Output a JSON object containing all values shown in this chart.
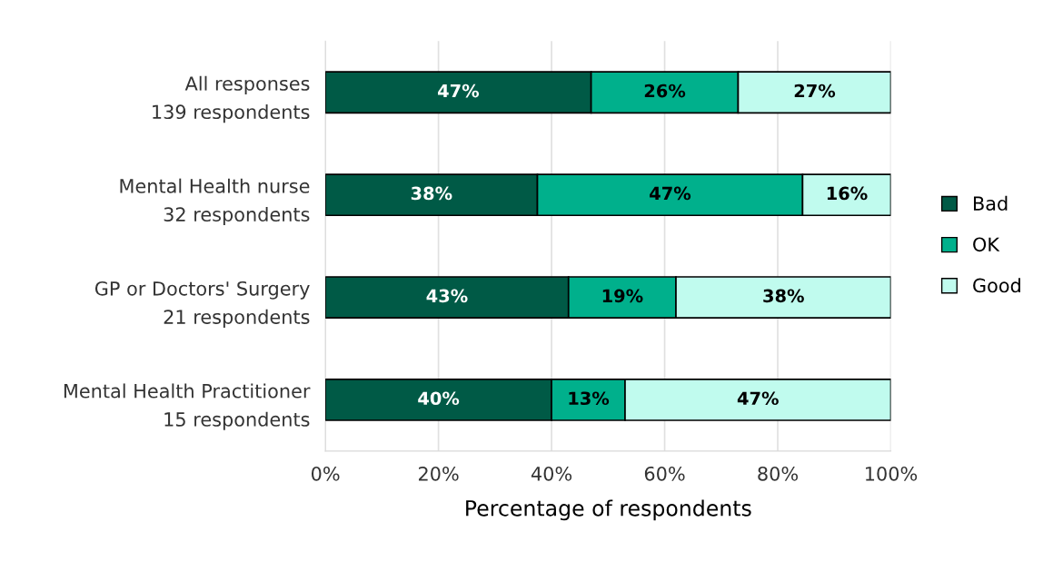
{
  "chart_data": {
    "type": "bar",
    "orientation": "horizontal",
    "stacked": true,
    "categories": [
      "All responses\n139 respondents",
      "Mental Health nurse\n32 respondents",
      "GP or Doctors' Surgery\n21 respondents",
      "Mental Health Practitioner\n15 respondents"
    ],
    "series": [
      {
        "name": "Bad",
        "color": "#005a46",
        "values": [
          47,
          37.5,
          43,
          40
        ],
        "value_labels": [
          "47%",
          "38%",
          "43%",
          "40%"
        ]
      },
      {
        "name": "OK",
        "color": "#00b08c",
        "values": [
          26,
          46.9,
          19,
          13
        ],
        "value_labels": [
          "26%",
          "47%",
          "19%",
          "13%"
        ]
      },
      {
        "name": "Good",
        "color": "#c0fbee",
        "values": [
          27,
          15.6,
          38,
          47
        ],
        "value_labels": [
          "27%",
          "16%",
          "38%",
          "47%"
        ]
      }
    ],
    "xlabel": "Percentage of respondents",
    "xlim": [
      0,
      100
    ],
    "xticks": [
      {
        "value": 0,
        "label": "0%"
      },
      {
        "value": 20,
        "label": "20%"
      },
      {
        "value": 40,
        "label": "40%"
      },
      {
        "value": 60,
        "label": "60%"
      },
      {
        "value": 80,
        "label": "80%"
      },
      {
        "value": 100,
        "label": "100%"
      }
    ],
    "grid": "x",
    "legend": "right"
  }
}
